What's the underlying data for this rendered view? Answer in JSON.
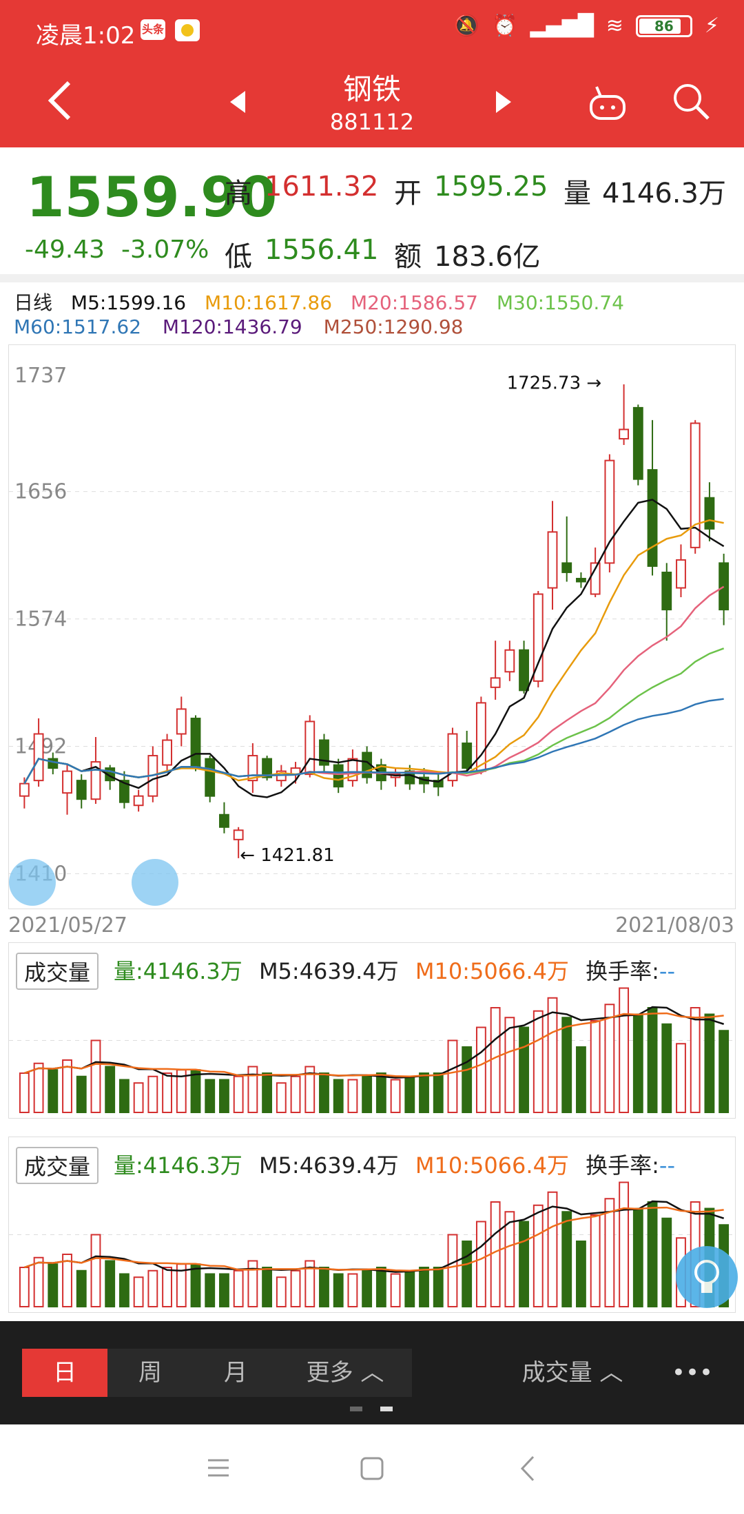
{
  "status": {
    "time": "凌晨1:02",
    "badge": "头条",
    "battery": "86"
  },
  "nav": {
    "title": "钢铁",
    "code": "881112",
    "back": "<",
    "prev": "◀",
    "next": "▶"
  },
  "quote": {
    "price": "1559.90",
    "change": "-49.43",
    "change_pct": "-3.07%",
    "high_label": "高",
    "high": "1611.32",
    "low_label": "低",
    "low": "1556.41",
    "open_label": "开",
    "open": "1595.25",
    "amount_label": "额",
    "amount": "183.6亿",
    "vol_label": "量",
    "vol": "4146.3万"
  },
  "ma": {
    "period": "日线",
    "m5": "M5:1599.16",
    "m10": "M10:1617.86",
    "m20": "M20:1586.57",
    "m30": "M30:1550.74",
    "m60": "M60:1517.62",
    "m120": "M120:1436.79",
    "m250": "M250:1290.98"
  },
  "colors": {
    "m5": "#111111",
    "m10": "#e89b0c",
    "m20": "#e5627b",
    "m30": "#6cc24a",
    "m60": "#2f76b5",
    "m120": "#5a1a7a",
    "m250": "#b0503a",
    "up": "#d32f2f",
    "down": "#2e6b12"
  },
  "chart_data": {
    "type": "candlestick",
    "y_ticks": [
      "1737",
      "1656",
      "1574",
      "1492",
      "1410"
    ],
    "ylim": [
      1400,
      1737
    ],
    "x_start": "2021/05/27",
    "x_end": "2021/08/03",
    "max_label": "1725.73",
    "min_label": "1421.81",
    "candles": [
      [
        1460,
        1468,
        1452,
        1472
      ],
      [
        1470,
        1500,
        1466,
        1510
      ],
      [
        1484,
        1478,
        1474,
        1488
      ],
      [
        1462,
        1476,
        1448,
        1480
      ],
      [
        1470,
        1458,
        1452,
        1474
      ],
      [
        1458,
        1482,
        1455,
        1498
      ],
      [
        1478,
        1470,
        1464,
        1480
      ],
      [
        1470,
        1456,
        1452,
        1476
      ],
      [
        1454,
        1460,
        1450,
        1464
      ],
      [
        1460,
        1486,
        1456,
        1492
      ],
      [
        1480,
        1496,
        1476,
        1500
      ],
      [
        1500,
        1516,
        1492,
        1524
      ],
      [
        1510,
        1478,
        1476,
        1512
      ],
      [
        1484,
        1460,
        1456,
        1486
      ],
      [
        1448,
        1440,
        1436,
        1456
      ],
      [
        1432,
        1438,
        1420,
        1440
      ],
      [
        1470,
        1486,
        1462,
        1494
      ],
      [
        1484,
        1472,
        1470,
        1486
      ],
      [
        1470,
        1476,
        1466,
        1480
      ],
      [
        1474,
        1478,
        1468,
        1482
      ],
      [
        1474,
        1508,
        1472,
        1512
      ],
      [
        1496,
        1480,
        1476,
        1500
      ],
      [
        1480,
        1466,
        1462,
        1484
      ],
      [
        1470,
        1484,
        1466,
        1490
      ],
      [
        1488,
        1472,
        1468,
        1492
      ],
      [
        1480,
        1470,
        1464,
        1484
      ],
      [
        1472,
        1474,
        1466,
        1478
      ],
      [
        1476,
        1468,
        1464,
        1480
      ],
      [
        1472,
        1468,
        1462,
        1478
      ],
      [
        1470,
        1466,
        1460,
        1474
      ],
      [
        1470,
        1500,
        1466,
        1504
      ],
      [
        1494,
        1478,
        1476,
        1502
      ],
      [
        1476,
        1520,
        1474,
        1524
      ],
      [
        1530,
        1536,
        1522,
        1560
      ],
      [
        1540,
        1554,
        1534,
        1560
      ],
      [
        1554,
        1528,
        1526,
        1560
      ],
      [
        1534,
        1590,
        1530,
        1592
      ],
      [
        1594,
        1630,
        1580,
        1650
      ],
      [
        1610,
        1604,
        1598,
        1640
      ],
      [
        1600,
        1598,
        1594,
        1604
      ],
      [
        1590,
        1610,
        1588,
        1620
      ],
      [
        1610,
        1676,
        1604,
        1680
      ],
      [
        1690,
        1696,
        1686,
        1725
      ],
      [
        1710,
        1664,
        1660,
        1712
      ],
      [
        1670,
        1608,
        1602,
        1702
      ],
      [
        1604,
        1580,
        1560,
        1610
      ],
      [
        1594,
        1612,
        1588,
        1622
      ],
      [
        1620,
        1700,
        1616,
        1702
      ],
      [
        1652,
        1632,
        1624,
        1662
      ],
      [
        1610,
        1580,
        1570,
        1616
      ]
    ],
    "volumes": [
      1.2,
      1.5,
      1.3,
      1.6,
      1.1,
      2.2,
      1.4,
      1.0,
      0.9,
      1.1,
      1.2,
      1.3,
      1.3,
      1.0,
      1.0,
      1.1,
      1.4,
      1.2,
      0.9,
      1.1,
      1.4,
      1.2,
      1.0,
      1.0,
      1.1,
      1.2,
      1.0,
      1.1,
      1.2,
      1.2,
      2.2,
      2.0,
      2.6,
      3.2,
      2.9,
      2.6,
      3.1,
      3.5,
      2.9,
      2.0,
      2.8,
      3.3,
      3.8,
      3.0,
      3.2,
      2.7,
      2.1,
      3.2,
      3.0,
      2.5
    ],
    "volume_max": 4.0
  },
  "vol_panel": {
    "label": "成交量",
    "vol": "量:4146.3万",
    "m5": "M5:4639.4万",
    "m10": "M10:5066.4万",
    "turnover": "换手率:",
    "turnover_val": "--"
  },
  "tabs": {
    "day": "日",
    "week": "周",
    "month": "月",
    "more": "更多 ︿",
    "indicator": "成交量 ︿",
    "dots": "•••"
  }
}
